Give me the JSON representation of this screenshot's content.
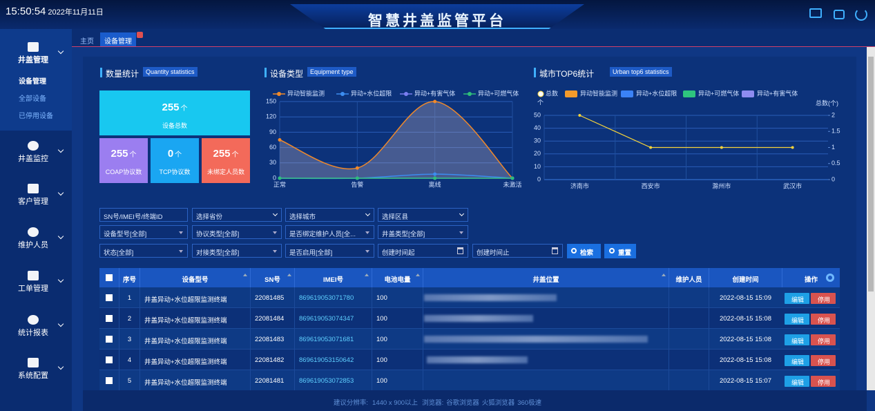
{
  "header": {
    "time": "15:50:54",
    "date": "2022年11月11日",
    "title": "智慧井盖监管平台"
  },
  "menu": [
    {
      "label": "井盖管理",
      "items": [
        "设备管理",
        "全部设备",
        "已停用设备"
      ]
    },
    {
      "label": "井盖监控"
    },
    {
      "label": "客户管理"
    },
    {
      "label": "维护人员"
    },
    {
      "label": "工单管理"
    },
    {
      "label": "统计报表"
    },
    {
      "label": "系统配置"
    }
  ],
  "tabs": [
    "主页",
    "设备管理"
  ],
  "stats": {
    "title": "数量统计",
    "subtitle": "Quantity statistics",
    "total": {
      "value": 255,
      "unit": "个",
      "label": "设备总数"
    },
    "cards": [
      {
        "value": 255,
        "unit": "个",
        "label": "COAP协议数",
        "color": "#9b7ef0"
      },
      {
        "value": 0,
        "unit": "个",
        "label": "TCP协议数",
        "color": "#1aa6f2"
      },
      {
        "value": 255,
        "unit": "个",
        "label": "未绑定人员数",
        "color": "#f36a5a"
      }
    ]
  },
  "chart_data": [
    {
      "type": "line",
      "title": "设备类型",
      "subtitle": "Equipment type",
      "categories": [
        "正常",
        "告警",
        "离线",
        "未激活"
      ],
      "series": [
        {
          "name": "异动智能监测",
          "color": "#f0892a",
          "values": [
            75,
            20,
            150,
            0
          ],
          "area": true
        },
        {
          "name": "异动+水位超限",
          "color": "#3c8df0",
          "values": [
            0,
            0,
            8,
            0
          ]
        },
        {
          "name": "异动+有害气体",
          "color": "#7a7ef0",
          "values": [
            0,
            0,
            0,
            0
          ]
        },
        {
          "name": "异动+可燃气体",
          "color": "#2ebd7a",
          "values": [
            0,
            0,
            0,
            0
          ]
        }
      ],
      "ylim": [
        0,
        150
      ],
      "yticks": [
        0,
        30,
        60,
        90,
        120,
        150
      ],
      "grid": true
    },
    {
      "type": "bar",
      "title": "城市TOP6统计",
      "subtitle": "Urban top6 statistics",
      "ylabel": "个",
      "y2label": "总数(个)",
      "categories": [
        "济南市",
        "西安市",
        "滁州市",
        "武汉市"
      ],
      "series": [
        {
          "name": "总数",
          "color": "#f5d33a",
          "type": "line",
          "axis": "y2",
          "values": [
            2,
            1,
            1,
            1
          ]
        },
        {
          "name": "异动智能监测",
          "color": "#f39a2b",
          "values": [
            0,
            0,
            0,
            0
          ]
        },
        {
          "name": "异动+水位超限",
          "color": "#3b82f6",
          "values": [
            0,
            0,
            0,
            0
          ]
        },
        {
          "name": "异动+可燃气体",
          "color": "#2ec47e",
          "values": [
            0,
            0,
            0,
            0
          ]
        },
        {
          "name": "异动+有害气体",
          "color": "#8e8cf0",
          "values": [
            0,
            0,
            0,
            0
          ]
        }
      ],
      "ylim": [
        0,
        50
      ],
      "yticks": [
        0,
        10,
        20,
        30,
        40,
        50
      ],
      "y2lim": [
        0,
        2
      ],
      "y2ticks": [
        0,
        0.5,
        1,
        1.5,
        2
      ],
      "grid": true
    }
  ],
  "filters": [
    [
      "SN号/IMEI号/终端ID",
      "选择省份",
      "选择城市",
      "选择区县"
    ],
    [
      "设备型号[全部]",
      "协议类型[全部]",
      "是否绑定维护人员[全...",
      "井盖类型[全部]"
    ],
    [
      "状态[全部]",
      "对接类型[全部]",
      "是否启用[全部]",
      "创建时间起",
      "创建时间止"
    ]
  ],
  "buttons": [
    "检索",
    "重置"
  ],
  "table": {
    "headers": [
      "序号",
      "设备型号",
      "SN号",
      "IMEI号",
      "电池电量",
      "井盖位置",
      "维护人员",
      "创建时间",
      "操作"
    ],
    "rows": [
      {
        "no": "1",
        "model": "井盖异动+水位超限监测终端",
        "sn": "22081485",
        "imei": "869619053071780",
        "battery": "100",
        "created": "2022-08-15 15:09"
      },
      {
        "no": "2",
        "model": "井盖异动+水位超限监测终端",
        "sn": "22081484",
        "imei": "869619053074347",
        "battery": "100",
        "created": "2022-08-15 15:08"
      },
      {
        "no": "3",
        "model": "井盖异动+水位超限监测终端",
        "sn": "22081483",
        "imei": "869619053071681",
        "battery": "100",
        "created": "2022-08-15 15:08"
      },
      {
        "no": "4",
        "model": "井盖异动+水位超限监测终端",
        "sn": "22081482",
        "imei": "869619053150642",
        "battery": "100",
        "created": "2022-08-15 15:08"
      },
      {
        "no": "5",
        "model": "井盖异动+水位超限监测终端",
        "sn": "22081481",
        "imei": "869619053072853",
        "battery": "100",
        "created": "2022-08-15 15:07"
      }
    ],
    "actions": [
      "编辑",
      "停用"
    ]
  },
  "footer": [
    "建议分辨率:",
    "1440 x 900以上",
    "浏览器:",
    "谷歌浏览器",
    "火狐浏览器",
    "360极速"
  ]
}
